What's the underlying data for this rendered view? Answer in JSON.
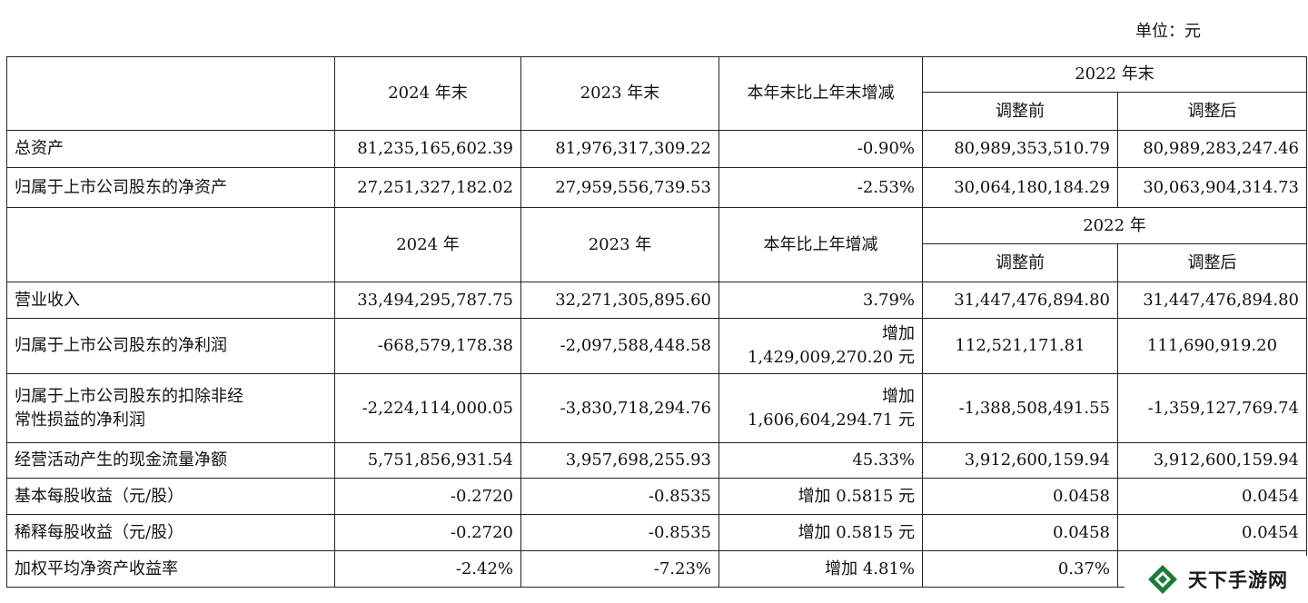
{
  "unit_label": "单位：元",
  "header1": {
    "col2024": "2024 年末",
    "col2023": "2023 年末",
    "change": "本年末比上年末增减",
    "col2022": "2022 年末",
    "before": "调整前",
    "after": "调整后"
  },
  "rows1": [
    {
      "label": "总资产",
      "v2024": "81,235,165,602.39",
      "v2023": "81,976,317,309.22",
      "change": "-0.90%",
      "before": "80,989,353,510.79",
      "after": "80,989,283,247.46"
    },
    {
      "label": "归属于上市公司股东的净资产",
      "v2024": "27,251,327,182.02",
      "v2023": "27,959,556,739.53",
      "change": "-2.53%",
      "before": "30,064,180,184.29",
      "after": "30,063,904,314.73"
    }
  ],
  "header2": {
    "col2024": "2024 年",
    "col2023": "2023 年",
    "change": "本年比上年增减",
    "col2022": "2022 年",
    "before": "调整前",
    "after": "调整后"
  },
  "rows2": [
    {
      "label": "营业收入",
      "v2024": "33,494,295,787.75",
      "v2023": "32,271,305,895.60",
      "change": "3.79%",
      "change2": "",
      "before": "31,447,476,894.80",
      "after": "31,447,476,894.80"
    },
    {
      "label": "归属于上市公司股东的净利润",
      "v2024": "-668,579,178.38",
      "v2023": "-2,097,588,448.58",
      "change": "增加",
      "change2": "1,429,009,270.20 元",
      "before": "112,521,171.81",
      "after": "111,690,919.20"
    },
    {
      "label": "归属于上市公司股东的扣除非经",
      "label2": "常性损益的净利润",
      "v2024": "-2,224,114,000.05",
      "v2023": "-3,830,718,294.76",
      "change": "增加",
      "change2": "1,606,604,294.71 元",
      "before": "-1,388,508,491.55",
      "after": "-1,359,127,769.74"
    },
    {
      "label": "经营活动产生的现金流量净额",
      "v2024": "5,751,856,931.54",
      "v2023": "3,957,698,255.93",
      "change": "45.33%",
      "before": "3,912,600,159.94",
      "after": "3,912,600,159.94"
    },
    {
      "label": "基本每股收益（元/股）",
      "v2024": "-0.2720",
      "v2023": "-0.8535",
      "change": "增加 0.5815 元",
      "before": "0.0458",
      "after": "0.0454"
    },
    {
      "label": "稀释每股收益（元/股）",
      "v2024": "-0.2720",
      "v2023": "-0.8535",
      "change": "增加 0.5815 元",
      "before": "0.0458",
      "after": "0.0454"
    },
    {
      "label": "加权平均净资产收益率",
      "v2024": "-2.42%",
      "v2023": "-7.23%",
      "change": "增加 4.81%",
      "before": "0.37%",
      "after": ""
    }
  ],
  "watermark": {
    "text": "天下手游网",
    "icon": "diamond-logo-icon",
    "color": "#1f7a3a"
  }
}
